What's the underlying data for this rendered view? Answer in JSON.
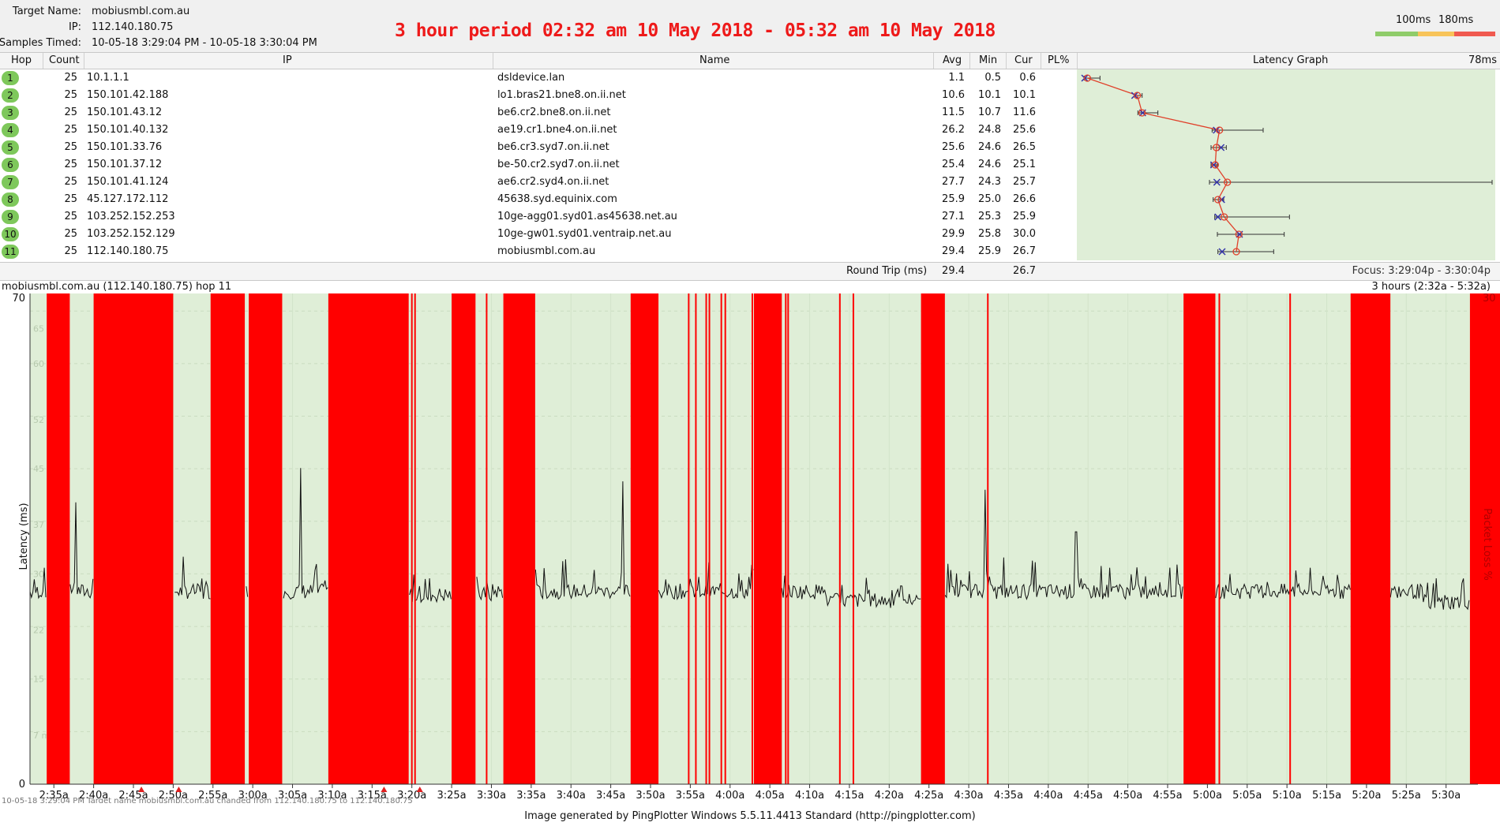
{
  "header": {
    "target_label": "Target Name:",
    "target_value": "mobiusmbl.com.au",
    "ip_label": "IP:",
    "ip_value": "112.140.180.75",
    "samples_label": "Samples Timed:",
    "samples_value": "10-05-18 3:29:04 PM - 10-05-18 3:30:04 PM",
    "banner": "3 hour period 02:32 am 10 May 2018 - 05:32 am 10 May 2018",
    "threshold_1": "100ms",
    "threshold_2": "180ms",
    "colors": {
      "good": "#8fcc6a",
      "warn": "#f8c45a",
      "bad": "#f05a50"
    }
  },
  "columns": {
    "hop": "Hop",
    "count": "Count",
    "ip": "IP",
    "name": "Name",
    "avg": "Avg",
    "min": "Min",
    "cur": "Cur",
    "pl": "PL%",
    "latency_graph": "Latency Graph",
    "graph_max": "78ms"
  },
  "hops": [
    {
      "hop": "1",
      "count": "25",
      "ip": "10.1.1.1",
      "name": "dsldevice.lan",
      "avg": "1.1",
      "min": "0.5",
      "cur": "0.6"
    },
    {
      "hop": "2",
      "count": "25",
      "ip": "150.101.42.188",
      "name": "lo1.bras21.bne8.on.ii.net",
      "avg": "10.6",
      "min": "10.1",
      "cur": "10.1"
    },
    {
      "hop": "3",
      "count": "25",
      "ip": "150.101.43.12",
      "name": "be6.cr2.bne8.on.ii.net",
      "avg": "11.5",
      "min": "10.7",
      "cur": "11.6"
    },
    {
      "hop": "4",
      "count": "25",
      "ip": "150.101.40.132",
      "name": "ae19.cr1.bne4.on.ii.net",
      "avg": "26.2",
      "min": "24.8",
      "cur": "25.6"
    },
    {
      "hop": "5",
      "count": "25",
      "ip": "150.101.33.76",
      "name": "be6.cr3.syd7.on.ii.net",
      "avg": "25.6",
      "min": "24.6",
      "cur": "26.5"
    },
    {
      "hop": "6",
      "count": "25",
      "ip": "150.101.37.12",
      "name": "be-50.cr2.syd7.on.ii.net",
      "avg": "25.4",
      "min": "24.6",
      "cur": "25.1"
    },
    {
      "hop": "7",
      "count": "25",
      "ip": "150.101.41.124",
      "name": "ae6.cr2.syd4.on.ii.net",
      "avg": "27.7",
      "min": "24.3",
      "cur": "25.7"
    },
    {
      "hop": "8",
      "count": "25",
      "ip": "45.127.172.112",
      "name": "45638.syd.equinix.com",
      "avg": "25.9",
      "min": "25.0",
      "cur": "26.6"
    },
    {
      "hop": "9",
      "count": "25",
      "ip": "103.252.152.253",
      "name": "10ge-agg01.syd01.as45638.net.au",
      "avg": "27.1",
      "min": "25.3",
      "cur": "25.9"
    },
    {
      "hop": "10",
      "count": "25",
      "ip": "103.252.152.129",
      "name": "10ge-gw01.syd01.ventraip.net.au",
      "avg": "29.9",
      "min": "25.8",
      "cur": "30.0"
    },
    {
      "hop": "11",
      "count": "25",
      "ip": "112.140.180.75",
      "name": "mobiusmbl.com.au",
      "avg": "29.4",
      "min": "25.9",
      "cur": "26.7"
    }
  ],
  "latency_graph": {
    "max_ms": 78,
    "points": [
      {
        "avg": 1.1,
        "cur": 0.6,
        "min": 0.5,
        "max": 3.5
      },
      {
        "avg": 10.6,
        "cur": 10.1,
        "min": 10.1,
        "max": 11.5
      },
      {
        "avg": 11.5,
        "cur": 11.6,
        "min": 10.7,
        "max": 14.5
      },
      {
        "avg": 26.2,
        "cur": 25.6,
        "min": 24.8,
        "max": 34.5
      },
      {
        "avg": 25.6,
        "cur": 26.5,
        "min": 24.6,
        "max": 27.5
      },
      {
        "avg": 25.4,
        "cur": 25.1,
        "min": 24.6,
        "max": 25.8
      },
      {
        "avg": 27.7,
        "cur": 25.7,
        "min": 24.3,
        "max": 78.0
      },
      {
        "avg": 25.9,
        "cur": 26.6,
        "min": 25.0,
        "max": 27.0
      },
      {
        "avg": 27.1,
        "cur": 25.9,
        "min": 25.3,
        "max": 39.5
      },
      {
        "avg": 29.9,
        "cur": 30.0,
        "min": 25.8,
        "max": 38.5
      },
      {
        "avg": 29.4,
        "cur": 26.7,
        "min": 25.9,
        "max": 36.5
      }
    ]
  },
  "round_trip": {
    "label": "Round Trip (ms)",
    "avg": "29.4",
    "cur": "26.7",
    "focus": "Focus: 3:29:04p - 3:30:04p"
  },
  "history": {
    "title": "mobiusmbl.com.au (112.140.180.75) hop 11",
    "range": "3 hours (2:32a - 5:32a)",
    "y_label": "Latency (ms)",
    "y2_label": "Packet Loss %",
    "y_max": "70",
    "y_min": "0",
    "y2_max": "30",
    "y_ticks": [
      "65 ms",
      "60 ms",
      "52 ms",
      "45 ms",
      "37 ms",
      "30 ms",
      "22 ms",
      "15 ms",
      "7 ms"
    ],
    "x_ticks": [
      "2:35a",
      "2:40a",
      "2:45a",
      "2:50a",
      "2:55a",
      "3:00a",
      "3:05a",
      "3:10a",
      "3:15a",
      "3:20a",
      "3:25a",
      "3:30a",
      "3:35a",
      "3:40a",
      "3:45a",
      "3:50a",
      "3:55a",
      "4:00a",
      "4:05a",
      "4:10a",
      "4:15a",
      "4:20a",
      "4:25a",
      "4:30a",
      "4:35a",
      "4:40a",
      "4:45a",
      "4:50a",
      "4:55a",
      "5:00a",
      "5:05a",
      "5:10a",
      "5:15a",
      "5:20a",
      "5:25a",
      "5:30a"
    ],
    "loss_blocks": [
      [
        2.1,
        5.0
      ],
      [
        8.0,
        18.0
      ],
      [
        22.7,
        27.0
      ],
      [
        27.5,
        31.7
      ],
      [
        37.5,
        47.6
      ],
      [
        53.0,
        56.0
      ],
      [
        59.5,
        63.5
      ],
      [
        75.5,
        79.0
      ],
      [
        91.0,
        94.5
      ],
      [
        112.0,
        115.0
      ],
      [
        145.0,
        149.0
      ],
      [
        166.0,
        171.0
      ],
      [
        169.8,
        170.0
      ],
      [
        181.0,
        186.0
      ]
    ],
    "loss_lines": [
      47.9,
      48.3,
      57.3,
      82.7,
      83.6,
      84.9,
      85.3,
      86.8,
      87.3,
      90.7,
      94.9,
      95.2,
      101.7,
      103.4,
      120.3,
      149.4,
      158.3,
      168.0,
      168.8,
      182.6,
      188.5
    ],
    "spikes": [
      [
        5.8,
        40.2
      ],
      [
        31.4,
        42.3
      ],
      [
        34.0,
        45.1
      ],
      [
        74.5,
        43.2
      ],
      [
        94.0,
        44.0
      ],
      [
        114.0,
        45.0
      ],
      [
        113.0,
        48.0
      ],
      [
        120.0,
        42.0
      ],
      [
        131.5,
        36.0
      ],
      [
        182.5,
        40.2
      ]
    ],
    "markers": [
      14.0,
      18.7,
      44.5,
      49.0,
      193.0
    ],
    "bottom_text": "10-05-18 3:29:04 PM Target name mobiusmbl.com.au changed from 112.140.180.75 to 112.140.180.75"
  },
  "footer": "Image generated by PingPlotter Windows 5.5.11.4413 Standard (http://pingplotter.com)"
}
